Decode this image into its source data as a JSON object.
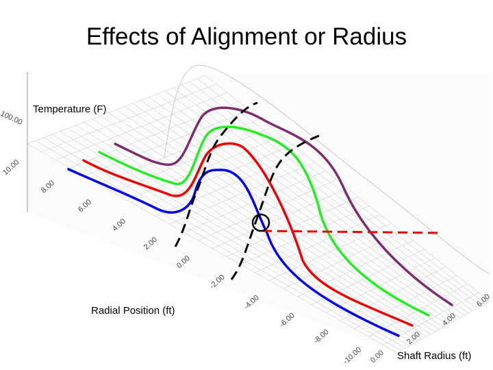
{
  "slide_title": "Effects of Alignment or Radius",
  "chart_data": {
    "type": "surface",
    "title": "Effects of Alignment or Radius",
    "zlabel": "Temperature (F)",
    "ylabel": "Radial Position (ft)",
    "xlabel": "Shaft Radius (ft)",
    "z_tick_labels": [
      "100.00"
    ],
    "radial_tick_labels": [
      "10.00",
      "8.00",
      "6.00",
      "4.00",
      "2.00",
      "0.00",
      "-2.00",
      "-4.00",
      "-6.00",
      "-8.00",
      "-10.00"
    ],
    "shaft_radius_tick_labels": [
      "0.00",
      "2.00",
      "4.00",
      "6.00"
    ],
    "grid": true,
    "series": [
      {
        "color": "#0000ee"
      },
      {
        "color": "#ee0000"
      },
      {
        "color": "#22ee22"
      },
      {
        "color": "#7b2d6e"
      }
    ],
    "annotations": {
      "dashed_line_colors": [
        "#000000",
        "#ee0000"
      ],
      "circle_marker": true
    }
  }
}
